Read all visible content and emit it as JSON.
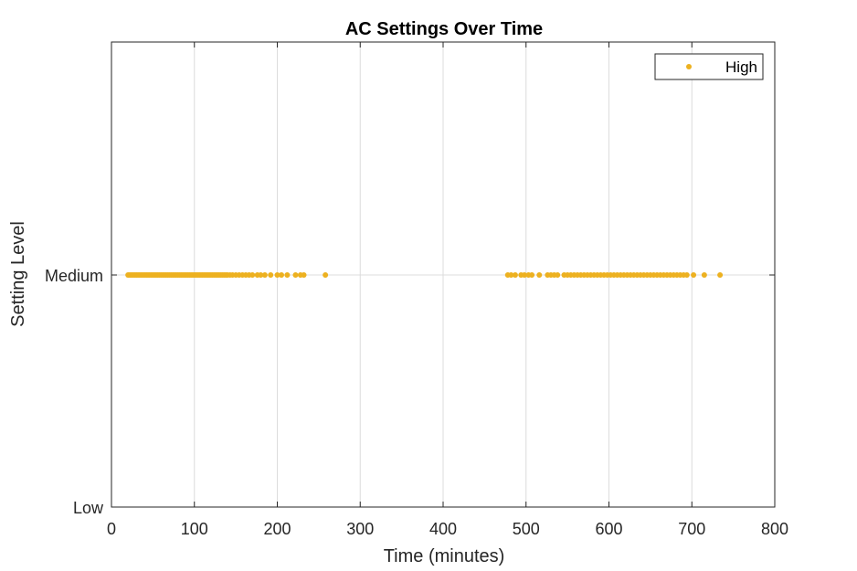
{
  "chart_data": {
    "type": "scatter",
    "title": "AC Settings Over Time",
    "xlabel": "Time (minutes)",
    "ylabel": "Setting Level",
    "xlim": [
      0,
      800
    ],
    "x_ticks": [
      0,
      100,
      200,
      300,
      400,
      500,
      600,
      700,
      800
    ],
    "y_categories": [
      "Low",
      "Medium"
    ],
    "grid": true,
    "legend_position": "top-right",
    "series": [
      {
        "name": "High",
        "color": "#EDB120",
        "y": "Medium",
        "x": [
          20,
          22,
          24,
          26,
          28,
          30,
          32,
          34,
          36,
          38,
          40,
          42,
          44,
          46,
          48,
          50,
          52,
          54,
          56,
          58,
          60,
          62,
          64,
          66,
          68,
          70,
          72,
          74,
          76,
          78,
          80,
          82,
          84,
          86,
          88,
          90,
          92,
          94,
          96,
          98,
          100,
          102,
          104,
          106,
          108,
          110,
          112,
          114,
          116,
          118,
          120,
          122,
          124,
          126,
          128,
          130,
          132,
          134,
          136,
          138,
          140,
          143,
          146,
          150,
          154,
          158,
          162,
          166,
          170,
          176,
          180,
          185,
          192,
          200,
          205,
          212,
          222,
          228,
          232,
          258,
          478,
          482,
          487,
          494,
          498,
          503,
          507,
          516,
          526,
          530,
          534,
          538,
          546,
          550,
          554,
          558,
          562,
          566,
          570,
          574,
          578,
          582,
          586,
          590,
          594,
          598,
          602,
          606,
          610,
          614,
          618,
          622,
          626,
          630,
          634,
          638,
          642,
          646,
          650,
          654,
          658,
          662,
          666,
          670,
          674,
          678,
          682,
          686,
          690,
          694,
          702,
          715,
          734
        ]
      }
    ]
  }
}
